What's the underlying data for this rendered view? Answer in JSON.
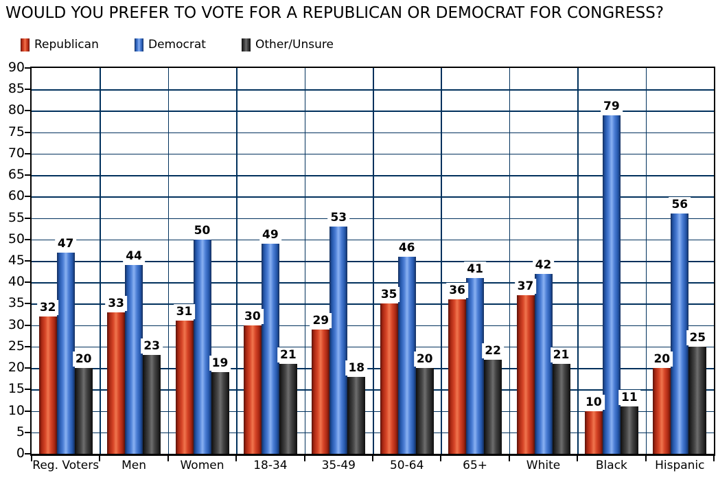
{
  "title": "WOULD YOU PREFER TO VOTE FOR A REPUBLICAN OR DEMOCRAT FOR CONGRESS?",
  "legend": {
    "items": [
      {
        "label": "Republican",
        "swatch": "republican-swatch",
        "color": "#d64527"
      },
      {
        "label": "Democrat",
        "swatch": "democrat-swatch",
        "color": "#4c7fd6"
      },
      {
        "label": "Other/Unsure",
        "swatch": "other-unsure-swatch",
        "color": "#474747"
      }
    ]
  },
  "colors": {
    "republican": "#d64527",
    "democrat": "#4c7fd6",
    "other_unsure": "#474747",
    "gridline": "#00305c",
    "axis": "#000000",
    "background": "#ffffff"
  },
  "chart_data": {
    "type": "bar",
    "title": "WOULD YOU PREFER TO VOTE FOR A REPUBLICAN OR DEMOCRAT FOR CONGRESS?",
    "categories": [
      "Reg. Voters",
      "Men",
      "Women",
      "18-34",
      "35-49",
      "50-64",
      "65+",
      "White",
      "Black",
      "Hispanic"
    ],
    "series": [
      {
        "name": "Republican",
        "key": "republican",
        "values": [
          32,
          33,
          31,
          30,
          29,
          35,
          36,
          37,
          10,
          20
        ]
      },
      {
        "name": "Democrat",
        "key": "democrat",
        "values": [
          47,
          44,
          50,
          49,
          53,
          46,
          41,
          42,
          79,
          56
        ]
      },
      {
        "name": "Other/Unsure",
        "key": "other",
        "values": [
          20,
          23,
          19,
          21,
          18,
          20,
          22,
          21,
          11,
          25
        ]
      }
    ],
    "xlabel": "",
    "ylabel": "",
    "ylim": [
      0,
      90
    ],
    "ytick_step": 5,
    "yticks": [
      0,
      5,
      10,
      15,
      20,
      25,
      30,
      35,
      40,
      45,
      50,
      55,
      60,
      65,
      70,
      75,
      80,
      85,
      90
    ],
    "grid": true,
    "data_labels": true,
    "legend_position": "top-left"
  }
}
